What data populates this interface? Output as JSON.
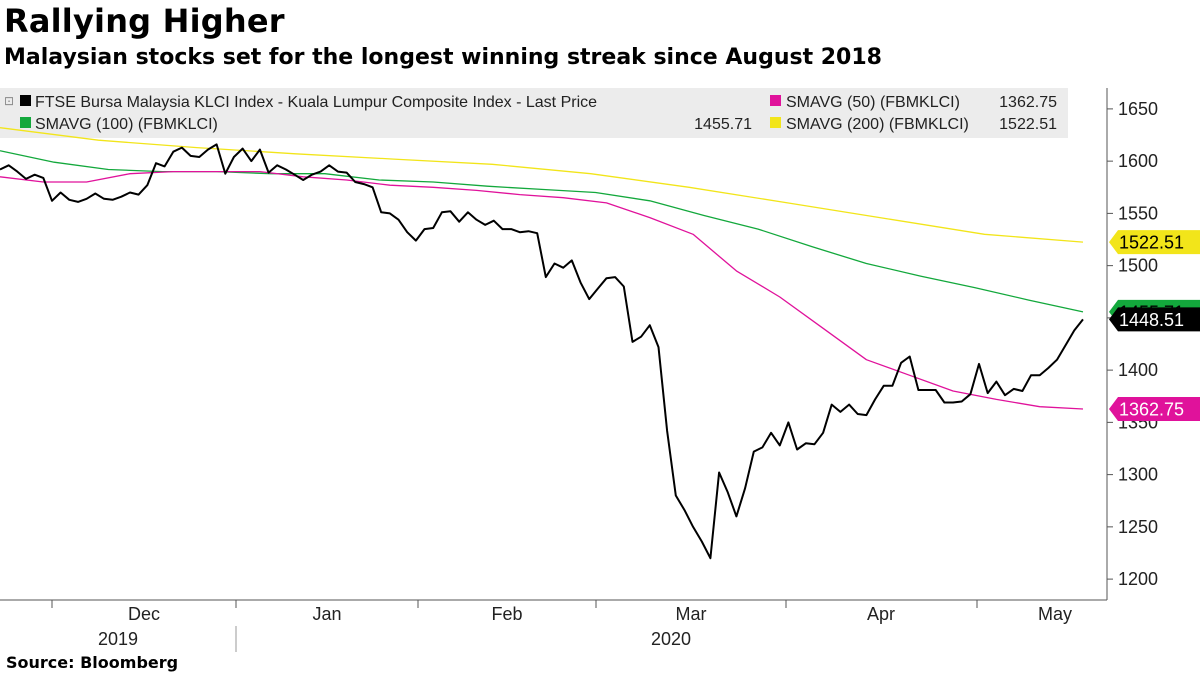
{
  "title": "Rallying Higher",
  "subtitle": "Malaysian stocks set for the longest winning streak since August 2018",
  "source": "Source:  Bloomberg",
  "chart_data": {
    "type": "line",
    "ylim": [
      1180,
      1670
    ],
    "y_ticks": [
      1200,
      1250,
      1300,
      1350,
      1400,
      1450,
      1500,
      1550,
      1600,
      1650
    ],
    "x_labels": [
      "Dec",
      "Jan",
      "Feb",
      "Mar",
      "Apr",
      "May"
    ],
    "year_labels": [
      "2019",
      "2020"
    ],
    "grid": false,
    "legend_position": "top",
    "series": [
      {
        "key": "klci",
        "name": "FTSE Bursa Malaysia KLCI Index - Kuala Lumpur Composite Index - Last Price",
        "last_value": "1448.51",
        "color": "#000000",
        "values": [
          1592,
          1596,
          1590,
          1583,
          1587,
          1584,
          1562,
          1570,
          1563,
          1561,
          1564,
          1569,
          1564,
          1563,
          1566,
          1570,
          1568,
          1577,
          1598,
          1595,
          1609,
          1613,
          1605,
          1604,
          1611,
          1616,
          1588,
          1604,
          1612,
          1600,
          1611,
          1589,
          1596,
          1592,
          1587,
          1582,
          1587,
          1590,
          1596,
          1590,
          1589,
          1580,
          1578,
          1575,
          1551,
          1550,
          1544,
          1532,
          1524,
          1535,
          1536,
          1551,
          1552,
          1542,
          1551,
          1544,
          1539,
          1543,
          1535,
          1535,
          1532,
          1533,
          1531,
          1489,
          1502,
          1498,
          1505,
          1484,
          1468,
          1478,
          1488,
          1489,
          1480,
          1427,
          1432,
          1443,
          1422,
          1342,
          1280,
          1266,
          1250,
          1236,
          1220,
          1302,
          1283,
          1260,
          1287,
          1322,
          1326,
          1340,
          1328,
          1350,
          1324,
          1330,
          1329,
          1340,
          1367,
          1360,
          1367,
          1358,
          1357,
          1372,
          1385,
          1385,
          1407,
          1413,
          1381,
          1381,
          1381,
          1369,
          1369,
          1370,
          1377,
          1406,
          1378,
          1389,
          1376,
          1382,
          1380,
          1395,
          1395,
          1402,
          1410,
          1424,
          1438,
          1448.51
        ]
      },
      {
        "key": "sma50",
        "name": "SMAVG (50) (FBMKLCI)",
        "last_value": "1362.75",
        "color": "#e0129b",
        "values": [
          1585,
          1580,
          1580,
          1588,
          1590,
          1590,
          1590,
          1585,
          1582,
          1577,
          1575,
          1572,
          1568,
          1565,
          1560,
          1546,
          1530,
          1495,
          1470,
          1440,
          1410,
          1395,
          1380,
          1372,
          1365,
          1362.75
        ]
      },
      {
        "key": "sma100",
        "name": "SMAVG (100) (FBMKLCI)",
        "last_value": "1455.71",
        "color": "#13a83c",
        "values": [
          1610,
          1599,
          1592,
          1590,
          1590,
          1588,
          1588,
          1582,
          1580,
          1576,
          1573,
          1570,
          1562,
          1548,
          1535,
          1518,
          1502,
          1490,
          1479,
          1467,
          1455.71
        ]
      },
      {
        "key": "sma200",
        "name": "SMAVG (200) (FBMKLCI)",
        "last_value": "1522.51",
        "color": "#f2e51a",
        "values": [
          1632,
          1620,
          1613,
          1607,
          1602,
          1597,
          1588,
          1575,
          1560,
          1545,
          1530,
          1522.51
        ]
      }
    ]
  }
}
